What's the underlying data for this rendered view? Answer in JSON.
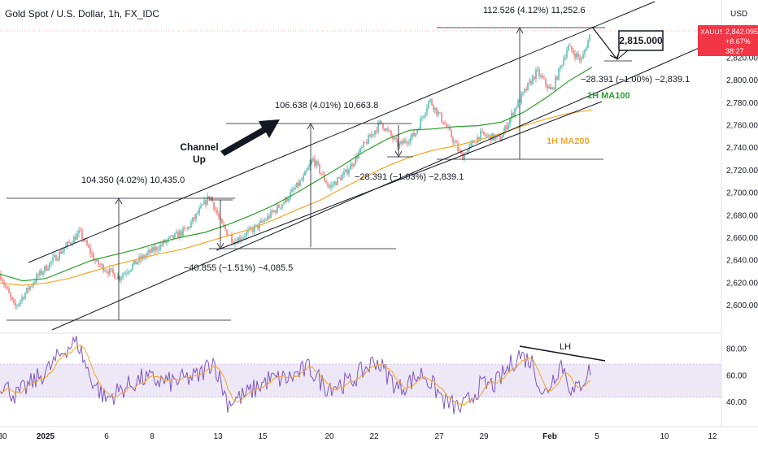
{
  "header": {
    "title": "Gold Spot / U.S. Dollar, 1h, FX_IDC",
    "currency": "USD"
  },
  "price_badge": {
    "symbol": "XAUUSD",
    "price": "2,842.095",
    "change": "+8.67%",
    "time": "38:27"
  },
  "colors": {
    "up_candle": "#26a69a",
    "down_candle": "#ef5350",
    "ma100": "#2ca02c",
    "ma200": "#f5a623",
    "rsi": "#7e57c2",
    "rsi_ma": "#f5a623",
    "rsi_band": "#ede7f6",
    "price_badge": "#f23645",
    "line": "#131722"
  },
  "chart_data": [
    {
      "type": "candlestick",
      "title": "Gold Spot / U.S. Dollar, 1h, FX_IDC",
      "x_tick_labels": [
        "30",
        "2025",
        "6",
        "8",
        "13",
        "15",
        "20",
        "22",
        "27",
        "29",
        "Feb",
        "5",
        "10",
        "12"
      ],
      "y_tick_labels": [
        "2,600.000",
        "2,620.000",
        "2,640.000",
        "2,660.000",
        "2,680.000",
        "2,700.000",
        "2,720.000",
        "2,740.000",
        "2,760.000",
        "2,780.000",
        "2,800.000",
        "2,820.000"
      ],
      "ylim": [
        2587,
        2850
      ],
      "key_prices": {
        "start_low": 2598,
        "jan_high_1": 2665,
        "jan_high_2": 2698,
        "jan_pullback_low": 2657,
        "high_jan_24": 2763,
        "pullback_low_jan_27": 2732,
        "current_high": 2842
      },
      "series": [
        {
          "name": "1H MA100",
          "values": [
            2628,
            2622,
            2624,
            2632,
            2640,
            2645,
            2650,
            2656,
            2661,
            2665,
            2672,
            2680,
            2689,
            2700,
            2712,
            2724,
            2737,
            2748,
            2756,
            2757,
            2759,
            2760,
            2763,
            2772,
            2785,
            2800,
            2812
          ]
        },
        {
          "name": "1H MA200",
          "values": [
            2620,
            2618,
            2620,
            2624,
            2630,
            2636,
            2641,
            2646,
            2650,
            2656,
            2662,
            2668,
            2676,
            2685,
            2693,
            2704,
            2714,
            2724,
            2732,
            2738,
            2742,
            2747,
            2753,
            2760,
            2766,
            2771,
            2774
          ]
        }
      ],
      "annotations": [
        {
          "label": "104.350 (4.02%) 10,435.0"
        },
        {
          "label": "−40.855 (−1.51%) −4,085.5"
        },
        {
          "label": "106.638 (4.01%) 10,663.8"
        },
        {
          "label": "−28.391 (−1.03%) −2,839.1"
        },
        {
          "label": "112.526 (4.12%) 11,252.6"
        },
        {
          "label": "−28.391 (−1.00%) −2,839.1"
        },
        {
          "label": "Channel Up"
        },
        {
          "label": "1H MA100"
        },
        {
          "label": "1H MA200"
        },
        {
          "label": "2,815.000"
        }
      ],
      "grid": false
    },
    {
      "type": "line",
      "y_tick_labels": [
        "40.00",
        "60.00",
        "80.00"
      ],
      "ylim": [
        23,
        92
      ],
      "band": [
        30,
        70
      ],
      "annotations": [
        {
          "label": "LH"
        }
      ]
    }
  ],
  "labels": {
    "channel_line1": "Channel",
    "channel_line2": "Up",
    "ma100": "1H MA100",
    "ma200": "1H MA200",
    "target": "2,815.000",
    "lh": "LH",
    "meas1": "104.350 (4.02%) 10,435.0",
    "meas2": "−40.855 (−1.51%) −4,085.5",
    "meas3": "106.638 (4.01%) 10,663.8",
    "meas4": "−28.391 (−1.03%) −2,839.1",
    "meas5": "112.526 (4.12%) 11,252.6",
    "meas6": "−28.391 (−1.00%) −2,839.1"
  }
}
